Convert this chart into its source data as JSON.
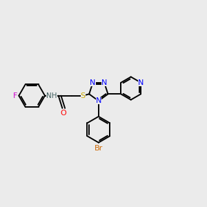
{
  "background_color": "#ebebeb",
  "atom_colors": {
    "C": "#000000",
    "N": "#0000ff",
    "O": "#ff0000",
    "S": "#ccaa00",
    "F": "#cc00cc",
    "H": "#406060",
    "Br": "#cc6600"
  },
  "bond_lw": 1.4,
  "font_size": 8.0,
  "fig_size": [
    3.0,
    3.0
  ],
  "dpi": 100
}
